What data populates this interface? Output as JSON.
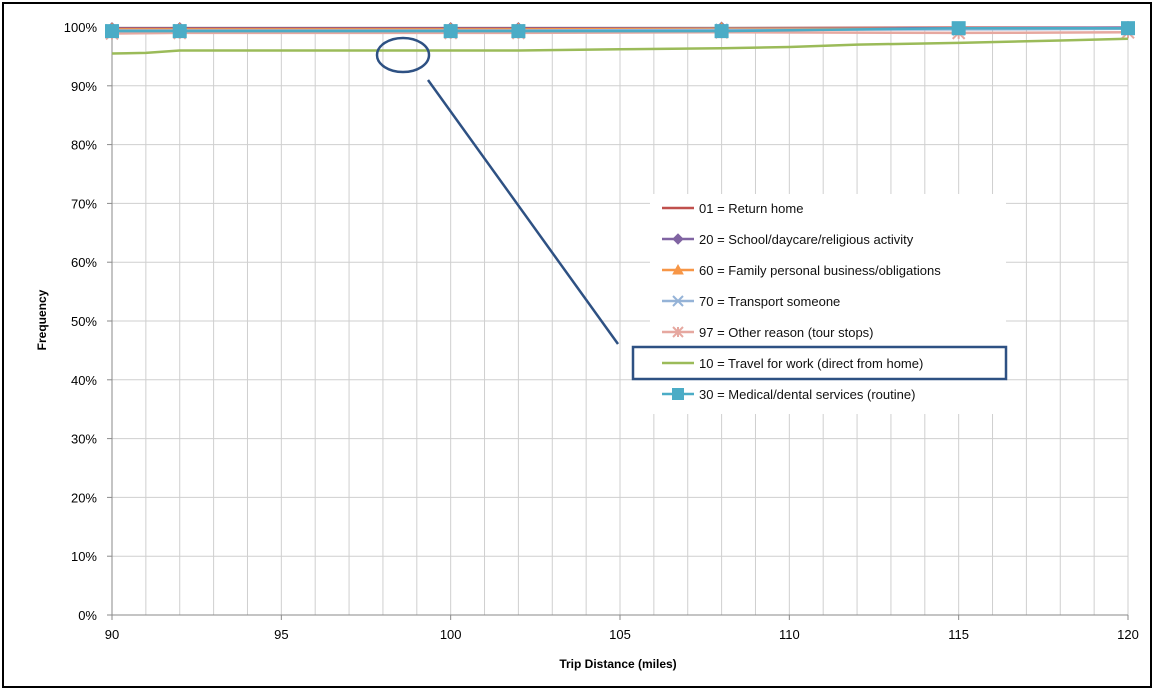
{
  "chart_data": {
    "type": "line",
    "xlabel": "Trip Distance (miles)",
    "ylabel": "Frequency",
    "xlim": [
      90,
      120
    ],
    "ylim": [
      0,
      100
    ],
    "x_ticks": [
      "90",
      "95",
      "100",
      "105",
      "110",
      "115",
      "120"
    ],
    "y_ticks": [
      "0%",
      "10%",
      "20%",
      "30%",
      "40%",
      "50%",
      "60%",
      "70%",
      "80%",
      "90%",
      "100%"
    ],
    "grid": true,
    "legend_position": "center-right",
    "highlighted_series": "10 = Travel for work (direct from home)",
    "series": [
      {
        "name": "01 = Return home",
        "color": "#c0504d",
        "marker": "none",
        "x": [
          90,
          92,
          100,
          102,
          108,
          115,
          120
        ],
        "y": [
          99.8,
          99.8,
          99.8,
          99.8,
          99.8,
          99.9,
          99.9
        ]
      },
      {
        "name": "20 = School/daycare/religious activity",
        "color": "#8064a2",
        "marker": "diamond",
        "x": [
          90,
          92,
          100,
          102,
          108,
          115,
          120
        ],
        "y": [
          99.7,
          99.7,
          99.7,
          99.7,
          99.8,
          99.8,
          99.9
        ]
      },
      {
        "name": "60 = Family personal business/obligations",
        "color": "#f79646",
        "marker": "triangle",
        "x": [
          90,
          92,
          100,
          102,
          108,
          115,
          120
        ],
        "y": [
          99.6,
          99.6,
          99.6,
          99.6,
          99.7,
          99.7,
          99.8
        ]
      },
      {
        "name": "70 = Transport someone",
        "color": "#95b3d7",
        "marker": "x",
        "x": [
          90,
          92,
          100,
          102,
          108,
          115,
          120
        ],
        "y": [
          99.4,
          99.4,
          99.4,
          99.4,
          99.5,
          99.6,
          99.7
        ]
      },
      {
        "name": "97 = Other reason (tour stops)",
        "color": "#e6a8a0",
        "marker": "asterisk",
        "x": [
          90,
          92,
          100,
          102,
          108,
          115,
          120
        ],
        "y": [
          98.9,
          99.0,
          99.0,
          99.0,
          99.1,
          99.0,
          99.1
        ]
      },
      {
        "name": "10 = Travel for work (direct from home)",
        "color": "#9bbb59",
        "marker": "none",
        "x": [
          90,
          91,
          92,
          95,
          100,
          102,
          105,
          108,
          110,
          112,
          115,
          118,
          120
        ],
        "y": [
          95.5,
          95.6,
          96.0,
          96.0,
          96.0,
          96.0,
          96.2,
          96.4,
          96.6,
          97.0,
          97.3,
          97.7,
          98.0
        ]
      },
      {
        "name": "30 = Medical/dental services (routine)",
        "color": "#4bacc6",
        "marker": "square",
        "x": [
          90,
          92,
          100,
          102,
          108,
          115,
          120
        ],
        "y": [
          99.3,
          99.3,
          99.3,
          99.3,
          99.3,
          99.8,
          99.8
        ]
      }
    ]
  }
}
